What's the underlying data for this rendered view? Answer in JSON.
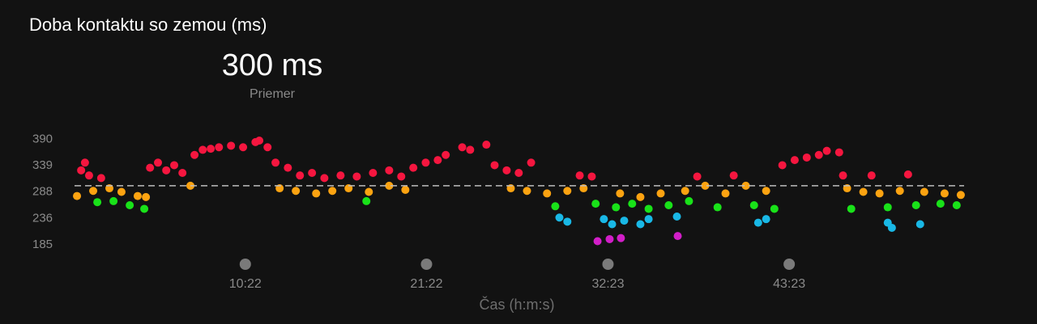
{
  "chart_data": {
    "type": "scatter",
    "title": "Doba kontaktu so zemou (ms)",
    "average": 300,
    "average_label": "300 ms",
    "average_caption": "Priemer",
    "x_label": "Čas (h:m:s)",
    "xlim": [
      0,
      3240
    ],
    "ylim": [
      166,
      410
    ],
    "xticks": [
      {
        "value": 622,
        "label": "10:22"
      },
      {
        "value": 1282,
        "label": "21:22"
      },
      {
        "value": 1943,
        "label": "32:23"
      },
      {
        "value": 2603,
        "label": "43:23"
      }
    ],
    "yticks": [
      390,
      339,
      288,
      236,
      185
    ],
    "series": [
      {
        "color": "#f5163f",
        "x": [
          24,
          38,
          53,
          97,
          275,
          304,
          334,
          363,
          393,
          437,
          467,
          496,
          526,
          570,
          614,
          659,
          673,
          703,
          732,
          777,
          821,
          865,
          910,
          969,
          1028,
          1087,
          1146,
          1190,
          1234,
          1279,
          1323,
          1352,
          1412,
          1441,
          1500,
          1530,
          1574,
          1618,
          1663,
          1840,
          1884,
          2268,
          2401,
          2578,
          2623,
          2667,
          2711,
          2740,
          2785,
          2799,
          2903,
          3036
        ],
        "values": [
          330,
          345,
          320,
          315,
          335,
          345,
          330,
          340,
          325,
          360,
          370,
          372,
          375,
          378,
          375,
          385,
          388,
          375,
          345,
          335,
          320,
          325,
          315,
          320,
          318,
          325,
          330,
          318,
          335,
          345,
          350,
          360,
          375,
          370,
          380,
          340,
          330,
          325,
          345,
          320,
          318,
          318,
          320,
          340,
          350,
          355,
          360,
          368,
          365,
          320,
          320,
          322
        ]
      },
      {
        "color": "#fca311",
        "x": [
          9,
          68,
          127,
          171,
          230,
          260,
          422,
          747,
          806,
          880,
          939,
          998,
          1072,
          1146,
          1205,
          1589,
          1648,
          1721,
          1795,
          1854,
          1987,
          2061,
          2135,
          2224,
          2297,
          2371,
          2445,
          2519,
          2814,
          2873,
          2932,
          3006,
          3095,
          3169,
          3228
        ],
        "values": [
          280,
          290,
          295,
          288,
          280,
          278,
          300,
          295,
          290,
          285,
          290,
          295,
          288,
          300,
          292,
          295,
          290,
          285,
          290,
          295,
          285,
          278,
          285,
          290,
          300,
          285,
          300,
          290,
          295,
          288,
          285,
          290,
          288,
          285,
          282
        ]
      },
      {
        "color": "#19e219",
        "x": [
          83,
          142,
          201,
          254,
          1063,
          1751,
          1898,
          1972,
          2031,
          2091,
          2164,
          2238,
          2342,
          2475,
          2549,
          2829,
          2962,
          3065,
          3154,
          3213
        ],
        "values": [
          268,
          270,
          262,
          255,
          270,
          260,
          265,
          258,
          265,
          255,
          262,
          270,
          258,
          262,
          255,
          255,
          258,
          262,
          265,
          262
        ]
      },
      {
        "color": "#19b8e6",
        "x": [
          1766,
          1795,
          1928,
          1958,
          2002,
          2061,
          2091,
          2194,
          2490,
          2519,
          2962,
          2977,
          3080
        ],
        "values": [
          238,
          230,
          235,
          225,
          232,
          225,
          235,
          240,
          228,
          235,
          228,
          218,
          225
        ]
      },
      {
        "color": "#d21ec8",
        "x": [
          1905,
          1949,
          1990,
          2197
        ],
        "values": [
          192,
          196,
          198,
          202
        ]
      }
    ]
  }
}
